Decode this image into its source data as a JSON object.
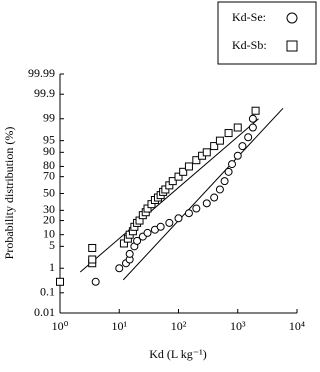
{
  "chart_data": {
    "type": "probability-scatter",
    "x_label": "Kd (L kg⁻¹)",
    "y_label": "Probability distribution (%)",
    "x_log": true,
    "y_scale": "probit",
    "xlim": [
      1,
      10000
    ],
    "xticks": [
      {
        "value": 1,
        "label": "10⁰"
      },
      {
        "value": 10,
        "label": "10¹"
      },
      {
        "value": 100,
        "label": "10²"
      },
      {
        "value": 1000,
        "label": "10³"
      },
      {
        "value": 10000,
        "label": "10⁴"
      }
    ],
    "ylim": [
      0.01,
      99.99
    ],
    "yticks": [
      0.01,
      0.1,
      1,
      5,
      10,
      20,
      30,
      50,
      70,
      80,
      90,
      95,
      99,
      99.9,
      99.99
    ],
    "legend_position": "top-right",
    "series": [
      {
        "name": "Kd-Se:",
        "marker": "circle",
        "color": "#000000",
        "x": [
          4,
          10,
          13,
          15,
          15,
          18,
          20,
          25,
          30,
          40,
          50,
          70,
          100,
          150,
          200,
          300,
          400,
          500,
          600,
          700,
          800,
          1000,
          1200,
          1500,
          1800,
          1800
        ],
        "values": [
          0.3,
          1,
          1.5,
          2,
          3,
          5,
          7,
          9,
          11,
          13,
          15,
          18,
          22,
          27,
          32,
          38,
          45,
          55,
          65,
          75,
          82,
          88,
          93,
          96,
          98,
          99
        ]
      },
      {
        "name": "Kd-Sb:",
        "marker": "square",
        "color": "#000000",
        "x": [
          1,
          3.5,
          3.5,
          3.5,
          12,
          14,
          15,
          17,
          18,
          20,
          22,
          25,
          28,
          30,
          35,
          40,
          45,
          50,
          55,
          60,
          70,
          80,
          100,
          120,
          150,
          200,
          250,
          300,
          400,
          500,
          700,
          1000,
          2000
        ],
        "values": [
          0.3,
          1.5,
          2,
          4.5,
          6,
          8,
          10,
          12,
          15,
          18,
          20,
          25,
          28,
          32,
          37,
          42,
          45,
          48,
          52,
          55,
          60,
          65,
          70,
          75,
          80,
          85,
          88,
          90,
          93,
          95,
          97,
          98,
          99.5
        ]
      }
    ],
    "fit_lines": [
      {
        "x": [
          2.2,
          2250
        ],
        "values": [
          0.73,
          99
        ],
        "color": "#000000"
      },
      {
        "x": [
          11.7,
          5800
        ],
        "values": [
          0.36,
          99.6
        ],
        "color": "#000000"
      }
    ]
  }
}
